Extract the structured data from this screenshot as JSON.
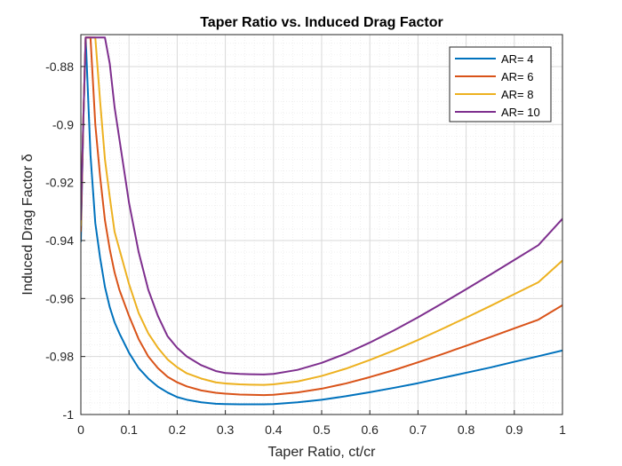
{
  "chart_data": {
    "type": "line",
    "title": "Taper Ratio vs. Induced Drag Factor",
    "xlabel": "Taper Ratio,  ct/cr",
    "ylabel": "Induced Drag Factor δ",
    "xlim": [
      0,
      1
    ],
    "ylim": [
      -1,
      -0.869
    ],
    "x_ticks": [
      0,
      0.1,
      0.2,
      0.3,
      0.4,
      0.5,
      0.6,
      0.7,
      0.8,
      0.9,
      1
    ],
    "x_tick_labels": [
      "0",
      "0.1",
      "0.2",
      "0.3",
      "0.4",
      "0.5",
      "0.6",
      "0.7",
      "0.8",
      "0.9",
      "1"
    ],
    "y_ticks": [
      -1,
      -0.98,
      -0.96,
      -0.94,
      -0.92,
      -0.9,
      -0.88
    ],
    "y_tick_labels": [
      "-1",
      "-0.98",
      "-0.96",
      "-0.94",
      "-0.92",
      "-0.9",
      "-0.88"
    ],
    "grid": "major and minor",
    "legend_position": "top-right",
    "x": [
      0,
      0.005,
      0.01,
      0.02,
      0.03,
      0.04,
      0.05,
      0.06,
      0.07,
      0.08,
      0.1,
      0.12,
      0.14,
      0.16,
      0.18,
      0.2,
      0.22,
      0.25,
      0.28,
      0.3,
      0.33,
      0.35,
      0.38,
      0.4,
      0.45,
      0.5,
      0.55,
      0.6,
      0.65,
      0.7,
      0.75,
      0.8,
      0.85,
      0.9,
      0.95,
      1.0
    ],
    "series": [
      {
        "name": "AR= 4",
        "color": "#0072BD",
        "values": [
          -0.9405,
          -0.9,
          -0.87,
          -0.9105,
          -0.934,
          -0.946,
          -0.956,
          -0.963,
          -0.9682,
          -0.972,
          -0.9787,
          -0.984,
          -0.9876,
          -0.9904,
          -0.9924,
          -0.994,
          -0.9949,
          -0.9958,
          -0.9963,
          -0.9964,
          -0.9965,
          -0.9965,
          -0.9965,
          -0.9964,
          -0.9958,
          -0.9949,
          -0.9937,
          -0.9923,
          -0.9908,
          -0.9892,
          -0.9874,
          -0.9856,
          -0.9838,
          -0.9818,
          -0.9799,
          -0.9779
        ]
      },
      {
        "name": "AR= 6",
        "color": "#D95319",
        "values": [
          -0.937,
          -0.899,
          -0.87,
          -0.87,
          -0.9,
          -0.918,
          -0.933,
          -0.943,
          -0.951,
          -0.957,
          -0.966,
          -0.974,
          -0.98,
          -0.984,
          -0.987,
          -0.9889,
          -0.9903,
          -0.9917,
          -0.9925,
          -0.9928,
          -0.9931,
          -0.9932,
          -0.9933,
          -0.9932,
          -0.9924,
          -0.9911,
          -0.9893,
          -0.9871,
          -0.9847,
          -0.982,
          -0.9792,
          -0.9763,
          -0.9733,
          -0.9703,
          -0.9673,
          -0.9623
        ]
      },
      {
        "name": "AR= 8",
        "color": "#EDB120",
        "values": [
          -0.935,
          -0.899,
          -0.87,
          -0.87,
          -0.87,
          -0.892,
          -0.912,
          -0.925,
          -0.937,
          -0.943,
          -0.955,
          -0.965,
          -0.972,
          -0.977,
          -0.981,
          -0.9837,
          -0.9858,
          -0.9876,
          -0.9889,
          -0.9893,
          -0.9896,
          -0.9897,
          -0.9898,
          -0.9896,
          -0.9886,
          -0.9867,
          -0.9842,
          -0.9812,
          -0.9779,
          -0.9743,
          -0.9705,
          -0.9666,
          -0.9626,
          -0.9585,
          -0.9544,
          -0.9469
        ]
      },
      {
        "name": "AR= 10",
        "color": "#7E2F8E",
        "values": [
          -0.933,
          -0.899,
          -0.87,
          -0.87,
          -0.87,
          -0.87,
          -0.87,
          -0.879,
          -0.894,
          -0.905,
          -0.927,
          -0.944,
          -0.957,
          -0.966,
          -0.973,
          -0.977,
          -0.98,
          -0.983,
          -0.985,
          -0.9857,
          -0.986,
          -0.9861,
          -0.9862,
          -0.986,
          -0.9846,
          -0.9822,
          -0.979,
          -0.9752,
          -0.971,
          -0.9665,
          -0.9617,
          -0.9568,
          -0.9518,
          -0.9467,
          -0.9416,
          -0.9325
        ]
      }
    ]
  }
}
